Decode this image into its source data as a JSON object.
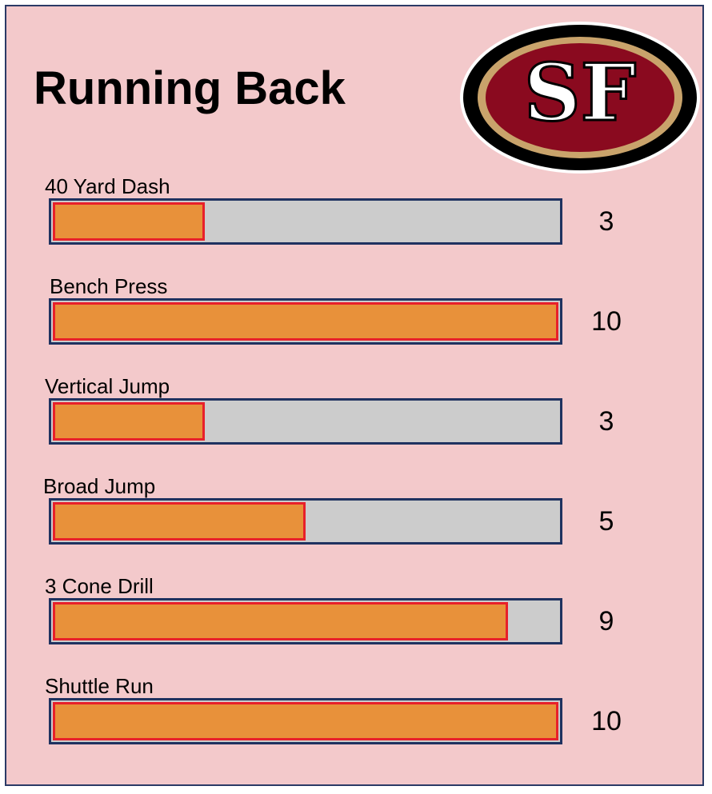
{
  "title": "Running Back",
  "logo": {
    "text": "SF",
    "icon": "49ers-oval-logo"
  },
  "colors": {
    "background": "#f3c9cb",
    "track": "#cccccc",
    "track_border": "#1f3260",
    "fill": "#e8913a",
    "fill_border": "#e8202a",
    "logo_red": "#8a0a1f",
    "logo_gold": "#c9a36b"
  },
  "chart_data": {
    "type": "bar",
    "orientation": "horizontal",
    "title": "Running Back",
    "xlim": [
      0,
      10
    ],
    "categories": [
      "40 Yard Dash",
      "Bench Press",
      "Vertical Jump",
      "Broad Jump",
      "3 Cone Drill",
      "Shuttle Run"
    ],
    "values": [
      3,
      10,
      3,
      5,
      9,
      10
    ]
  }
}
